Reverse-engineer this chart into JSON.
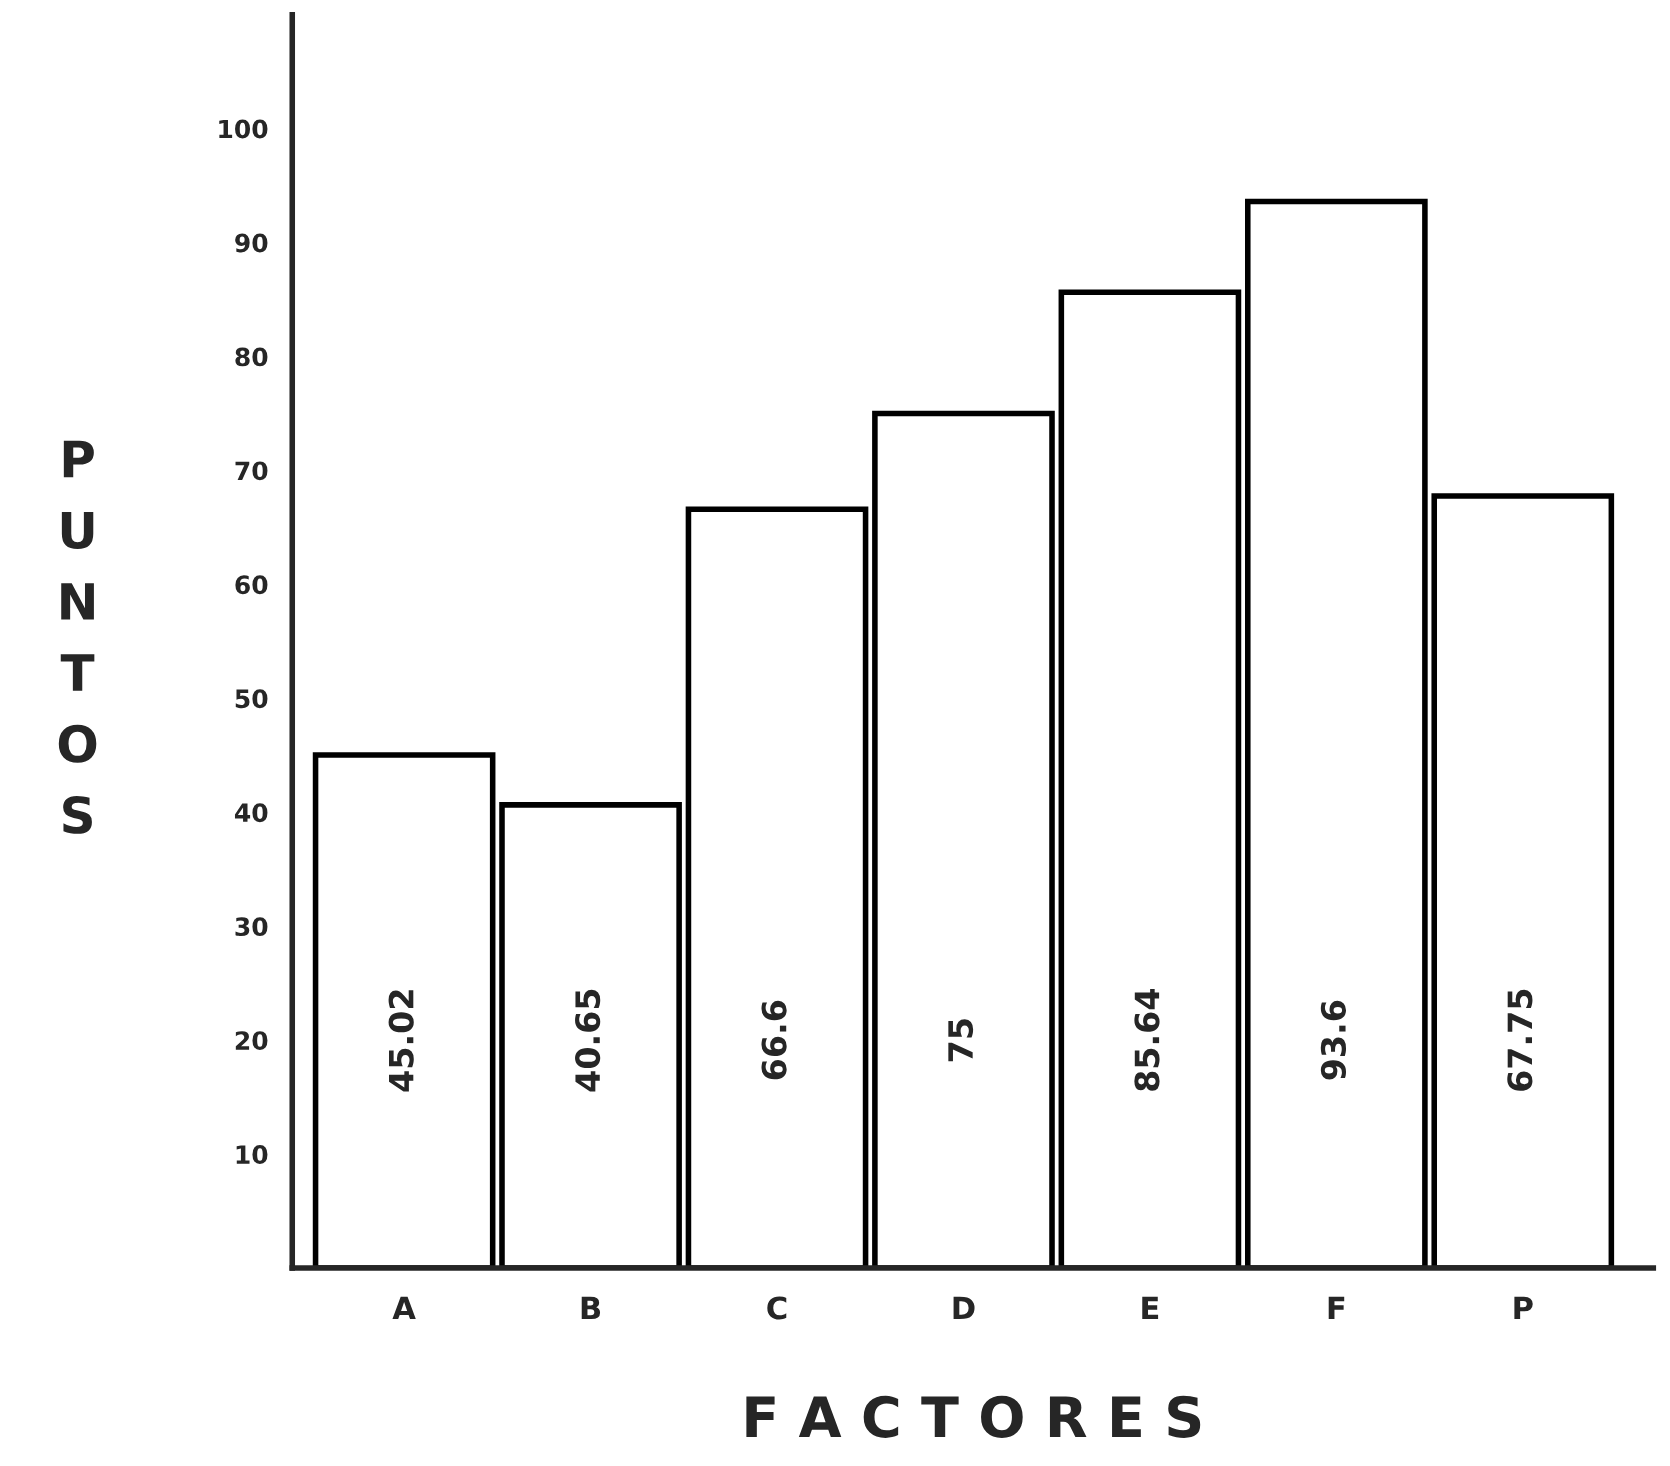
{
  "chart_data": {
    "type": "bar",
    "xlabel": "F A C T O R E S",
    "ylabel": "PUNTOS",
    "categories": [
      "A",
      "B",
      "C",
      "D",
      "E",
      "F",
      "P"
    ],
    "values": [
      45.02,
      40.65,
      66.6,
      75,
      85.64,
      93.6,
      67.75
    ],
    "value_labels": [
      "45.02",
      "40.65",
      "66.6",
      "75",
      "85.64",
      "93.6",
      "67.75"
    ],
    "color": "#ffffff",
    "ylim": [
      0,
      110
    ],
    "yticks": [
      10,
      20,
      30,
      40,
      50,
      60,
      70,
      80,
      90,
      100
    ],
    "grid": false
  }
}
